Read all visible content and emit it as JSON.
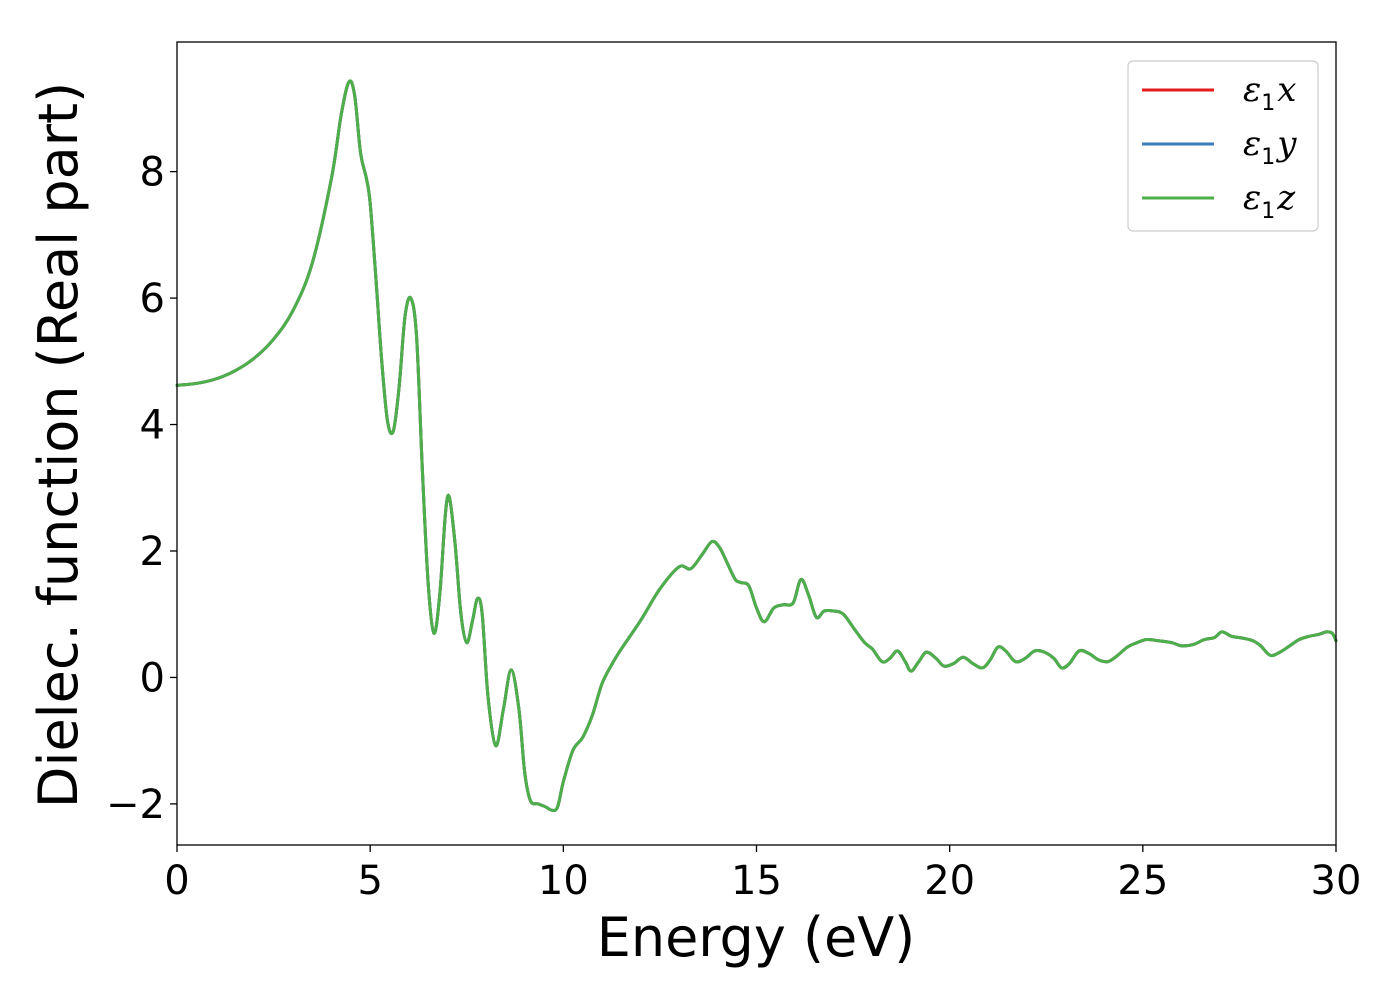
{
  "chart_data": {
    "type": "line",
    "xlabel": "Energy (eV)",
    "ylabel": "Dielec. function (Real part)",
    "xlim": [
      0,
      30
    ],
    "ylim": [
      -2.65,
      10.05
    ],
    "xticks": [
      0,
      5,
      10,
      15,
      20,
      25,
      30
    ],
    "xtick_labels": [
      "0",
      "5",
      "10",
      "15",
      "20",
      "25",
      "30"
    ],
    "yticks": [
      -2,
      0,
      2,
      4,
      6,
      8
    ],
    "ytick_labels": [
      "−2",
      "0",
      "2",
      "4",
      "6",
      "8"
    ],
    "grid": false,
    "legend_position": "top-right",
    "x": [
      0.0,
      0.5,
      1.0,
      1.5,
      2.0,
      2.5,
      3.0,
      3.5,
      4.0,
      4.25,
      4.45,
      4.6,
      4.75,
      4.9,
      5.0,
      5.15,
      5.3,
      5.45,
      5.6,
      5.75,
      5.9,
      6.05,
      6.2,
      6.35,
      6.5,
      6.65,
      6.8,
      6.95,
      7.05,
      7.2,
      7.35,
      7.5,
      7.65,
      7.78,
      7.9,
      8.05,
      8.25,
      8.45,
      8.65,
      8.85,
      9.0,
      9.15,
      9.35,
      9.55,
      9.7,
      9.85,
      10.0,
      10.25,
      10.5,
      10.75,
      11.0,
      11.25,
      11.5,
      12.0,
      12.5,
      13.0,
      13.3,
      13.6,
      13.85,
      14.05,
      14.25,
      14.45,
      14.6,
      14.8,
      15.0,
      15.2,
      15.45,
      15.7,
      15.95,
      16.15,
      16.35,
      16.55,
      16.75,
      17.0,
      17.25,
      17.55,
      17.8,
      18.0,
      18.25,
      18.45,
      18.65,
      18.85,
      19.0,
      19.2,
      19.4,
      19.65,
      19.85,
      20.1,
      20.35,
      20.6,
      20.85,
      21.05,
      21.25,
      21.45,
      21.7,
      21.95,
      22.2,
      22.45,
      22.7,
      22.9,
      23.1,
      23.35,
      23.6,
      23.85,
      24.1,
      24.35,
      24.6,
      24.85,
      25.1,
      25.4,
      25.75,
      26.0,
      26.3,
      26.6,
      26.85,
      27.05,
      27.3,
      27.6,
      27.85,
      28.05,
      28.3,
      28.55,
      28.8,
      29.05,
      29.3,
      29.55,
      29.75,
      29.9,
      30.0
    ],
    "series": [
      {
        "name": "ε₁x",
        "legend_main": "ε",
        "legend_sub": "1",
        "legend_tail": "x",
        "color": "#e41a1c",
        "values": [
          4.62,
          4.65,
          4.72,
          4.85,
          5.05,
          5.35,
          5.8,
          6.55,
          7.9,
          8.9,
          9.42,
          9.2,
          8.3,
          7.9,
          7.5,
          6.3,
          5.0,
          4.05,
          3.9,
          4.6,
          5.7,
          6.0,
          5.4,
          3.3,
          1.5,
          0.7,
          1.3,
          2.6,
          2.85,
          2.1,
          1.0,
          0.55,
          0.9,
          1.25,
          1.0,
          -0.3,
          -1.08,
          -0.5,
          0.12,
          -0.5,
          -1.5,
          -1.95,
          -2.0,
          -2.05,
          -2.1,
          -2.05,
          -1.65,
          -1.15,
          -0.95,
          -0.6,
          -0.1,
          0.2,
          0.45,
          0.9,
          1.4,
          1.75,
          1.72,
          1.95,
          2.15,
          2.05,
          1.8,
          1.55,
          1.5,
          1.45,
          1.1,
          0.88,
          1.1,
          1.15,
          1.18,
          1.55,
          1.3,
          0.95,
          1.05,
          1.05,
          1.0,
          0.75,
          0.55,
          0.45,
          0.25,
          0.3,
          0.42,
          0.25,
          0.1,
          0.25,
          0.4,
          0.3,
          0.18,
          0.22,
          0.32,
          0.22,
          0.15,
          0.28,
          0.48,
          0.42,
          0.25,
          0.3,
          0.42,
          0.4,
          0.3,
          0.15,
          0.22,
          0.42,
          0.38,
          0.28,
          0.25,
          0.35,
          0.48,
          0.55,
          0.6,
          0.58,
          0.55,
          0.5,
          0.52,
          0.6,
          0.63,
          0.72,
          0.65,
          0.62,
          0.58,
          0.5,
          0.35,
          0.4,
          0.5,
          0.6,
          0.65,
          0.68,
          0.72,
          0.7,
          0.58
        ]
      },
      {
        "name": "ε₁y",
        "legend_main": "ε",
        "legend_sub": "1",
        "legend_tail": "y",
        "color": "#377eb8",
        "values": [
          4.62,
          4.65,
          4.72,
          4.85,
          5.05,
          5.35,
          5.8,
          6.55,
          7.9,
          8.9,
          9.42,
          9.2,
          8.3,
          7.9,
          7.5,
          6.3,
          5.0,
          4.05,
          3.9,
          4.6,
          5.7,
          6.0,
          5.4,
          3.3,
          1.5,
          0.7,
          1.3,
          2.6,
          2.85,
          2.1,
          1.0,
          0.55,
          0.9,
          1.25,
          1.0,
          -0.3,
          -1.08,
          -0.5,
          0.12,
          -0.5,
          -1.5,
          -1.95,
          -2.0,
          -2.05,
          -2.1,
          -2.05,
          -1.65,
          -1.15,
          -0.95,
          -0.6,
          -0.1,
          0.2,
          0.45,
          0.9,
          1.4,
          1.75,
          1.72,
          1.95,
          2.15,
          2.05,
          1.8,
          1.55,
          1.5,
          1.45,
          1.1,
          0.88,
          1.1,
          1.15,
          1.18,
          1.55,
          1.3,
          0.95,
          1.05,
          1.05,
          1.0,
          0.75,
          0.55,
          0.45,
          0.25,
          0.3,
          0.42,
          0.25,
          0.1,
          0.25,
          0.4,
          0.3,
          0.18,
          0.22,
          0.32,
          0.22,
          0.15,
          0.28,
          0.48,
          0.42,
          0.25,
          0.3,
          0.42,
          0.4,
          0.3,
          0.15,
          0.22,
          0.42,
          0.38,
          0.28,
          0.25,
          0.35,
          0.48,
          0.55,
          0.6,
          0.58,
          0.55,
          0.5,
          0.52,
          0.6,
          0.63,
          0.72,
          0.65,
          0.62,
          0.58,
          0.5,
          0.35,
          0.4,
          0.5,
          0.6,
          0.65,
          0.68,
          0.72,
          0.7,
          0.58
        ]
      },
      {
        "name": "ε₁z",
        "legend_main": "ε",
        "legend_sub": "1",
        "legend_tail": "z",
        "color": "#4daf4a",
        "values": [
          4.62,
          4.65,
          4.72,
          4.85,
          5.05,
          5.35,
          5.8,
          6.55,
          7.9,
          8.9,
          9.42,
          9.2,
          8.3,
          7.9,
          7.5,
          6.3,
          5.0,
          4.05,
          3.9,
          4.6,
          5.7,
          6.0,
          5.4,
          3.3,
          1.5,
          0.7,
          1.3,
          2.6,
          2.85,
          2.1,
          1.0,
          0.55,
          0.9,
          1.25,
          1.0,
          -0.3,
          -1.08,
          -0.5,
          0.12,
          -0.5,
          -1.5,
          -1.95,
          -2.0,
          -2.05,
          -2.1,
          -2.05,
          -1.65,
          -1.15,
          -0.95,
          -0.6,
          -0.1,
          0.2,
          0.45,
          0.9,
          1.4,
          1.75,
          1.72,
          1.95,
          2.15,
          2.05,
          1.8,
          1.55,
          1.5,
          1.45,
          1.1,
          0.88,
          1.1,
          1.15,
          1.18,
          1.55,
          1.3,
          0.95,
          1.05,
          1.05,
          1.0,
          0.75,
          0.55,
          0.45,
          0.25,
          0.3,
          0.42,
          0.25,
          0.1,
          0.25,
          0.4,
          0.3,
          0.18,
          0.22,
          0.32,
          0.22,
          0.15,
          0.28,
          0.48,
          0.42,
          0.25,
          0.3,
          0.42,
          0.4,
          0.3,
          0.15,
          0.22,
          0.42,
          0.38,
          0.28,
          0.25,
          0.35,
          0.48,
          0.55,
          0.6,
          0.58,
          0.55,
          0.5,
          0.52,
          0.6,
          0.63,
          0.72,
          0.65,
          0.62,
          0.58,
          0.5,
          0.35,
          0.4,
          0.5,
          0.6,
          0.65,
          0.68,
          0.72,
          0.7,
          0.58
        ]
      }
    ]
  }
}
